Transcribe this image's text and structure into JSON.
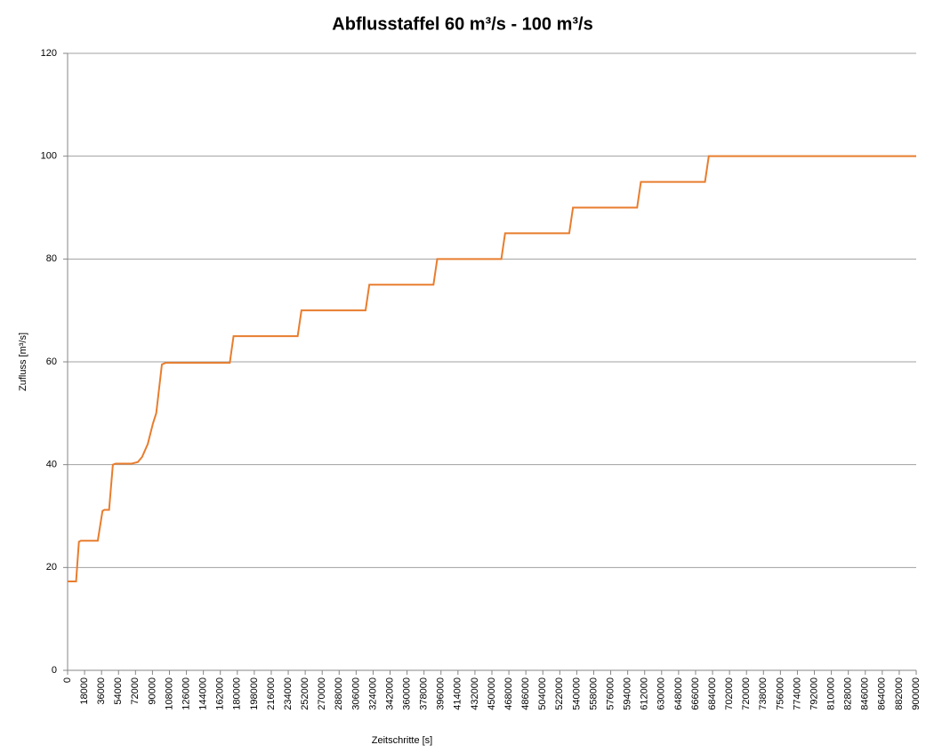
{
  "chart_data": {
    "type": "line",
    "title": "Abflusstaffel 60 m³/s - 100 m³/s",
    "x_label": "Zeitschritte [s]",
    "y_label": "Zufluss [m³/s]",
    "color": "#e87d2e",
    "grid": true,
    "xlim": [
      0,
      900000
    ],
    "ylim": [
      0,
      120
    ],
    "yticks": [
      0,
      20,
      40,
      60,
      80,
      100,
      120
    ],
    "xticks": [
      0,
      18000,
      36000,
      54000,
      72000,
      90000,
      108000,
      126000,
      144000,
      162000,
      180000,
      198000,
      216000,
      234000,
      252000,
      270000,
      288000,
      306000,
      324000,
      342000,
      360000,
      378000,
      396000,
      414000,
      432000,
      450000,
      468000,
      486000,
      504000,
      522000,
      540000,
      558000,
      576000,
      594000,
      612000,
      630000,
      648000,
      666000,
      684000,
      702000,
      720000,
      738000,
      756000,
      774000,
      792000,
      810000,
      828000,
      846000,
      864000,
      882000,
      900000
    ],
    "x": [
      0,
      9000,
      12000,
      14000,
      32000,
      37000,
      39000,
      44000,
      48000,
      51000,
      68000,
      74500,
      79000,
      85000,
      90500,
      94000,
      100000,
      104000,
      172000,
      176000,
      244000,
      248000,
      316000,
      320000,
      388000,
      392000,
      460000,
      464000,
      532000,
      536000,
      604000,
      608000,
      676000,
      680000,
      900000
    ],
    "values": [
      17.3,
      17.3,
      25,
      25.2,
      25.2,
      31,
      31.2,
      31.2,
      40,
      40.2,
      40.2,
      40.5,
      41.5,
      44,
      48,
      50,
      59.5,
      59.8,
      59.8,
      65,
      65,
      70,
      70,
      75,
      75,
      80,
      80,
      85,
      85,
      90,
      90,
      95,
      95,
      100,
      100
    ]
  }
}
